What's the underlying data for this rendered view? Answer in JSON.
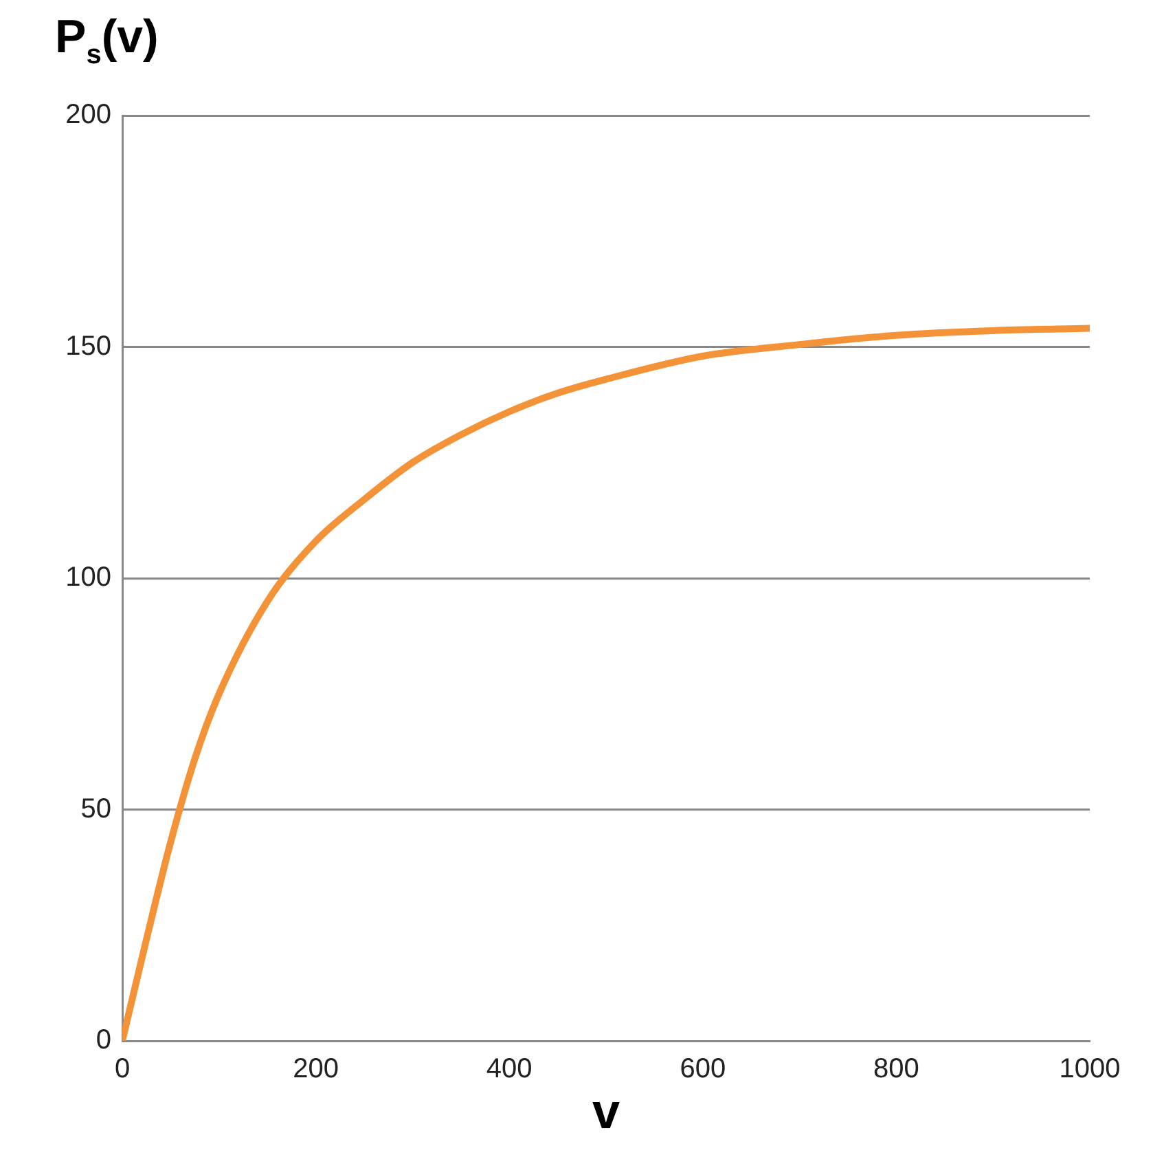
{
  "chart_data": {
    "type": "line",
    "xlabel": "v",
    "ylabel": "P$_{s}$(v)",
    "series": [
      {
        "color": "#f39237",
        "x": [
          0,
          25,
          50,
          75,
          100,
          150,
          200,
          250,
          300,
          350,
          400,
          450,
          500,
          600,
          700,
          800,
          900,
          1000
        ],
        "values": [
          0,
          22,
          43,
          61,
          75,
          95,
          108,
          117,
          125,
          131,
          136,
          140,
          143,
          148,
          150.5,
          152.5,
          153.5,
          154
        ]
      }
    ],
    "xlim": [
      0,
      1000
    ],
    "xticks": [
      0,
      200,
      400,
      600,
      800,
      1000
    ],
    "ylim": [
      0,
      200
    ],
    "yticks": [
      0,
      50,
      100,
      150,
      200
    ],
    "grid": "y",
    "legend": false,
    "marker": "none",
    "line_style": "solid"
  }
}
